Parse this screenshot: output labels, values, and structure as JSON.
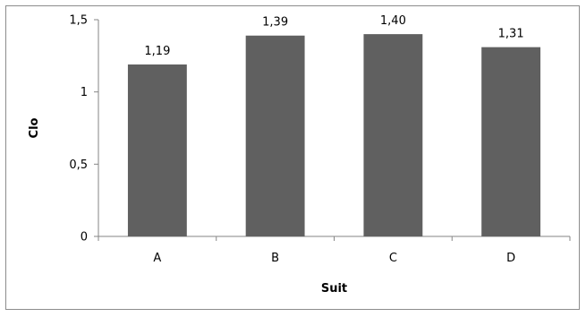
{
  "chart_data": {
    "type": "bar",
    "title": "",
    "xlabel": "Suit",
    "ylabel": "Clo",
    "categories": [
      "A",
      "B",
      "C",
      "D"
    ],
    "values": [
      1.19,
      1.39,
      1.4,
      1.31
    ],
    "data_labels": [
      "1,19",
      "1,39",
      "1,40",
      "1,31"
    ],
    "ylim": [
      0,
      1.5
    ],
    "y_ticks": [
      0,
      0.5,
      1,
      1.5
    ],
    "y_tick_labels": [
      "0",
      "0,5",
      "1",
      "1,5"
    ],
    "grid": false,
    "legend": "none",
    "bar_color": "#606060"
  }
}
